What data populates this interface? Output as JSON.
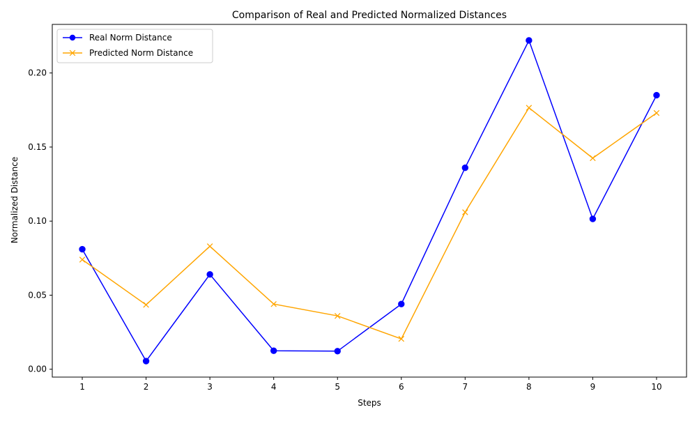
{
  "chart_data": {
    "type": "line",
    "title": "Comparison of Real and Predicted Normalized Distances",
    "xlabel": "Steps",
    "ylabel": "Normalized Distance",
    "x": [
      1,
      2,
      3,
      4,
      5,
      6,
      7,
      8,
      9,
      10
    ],
    "xticks": [
      "1",
      "2",
      "3",
      "4",
      "5",
      "6",
      "7",
      "8",
      "9",
      "10"
    ],
    "yticks": [
      0.0,
      0.05,
      0.1,
      0.15,
      0.2
    ],
    "ytick_labels": [
      "0.00",
      "0.05",
      "0.10",
      "0.15",
      "0.20"
    ],
    "xlim": [
      0.53,
      10.47
    ],
    "ylim": [
      -0.0053,
      0.2328
    ],
    "grid": false,
    "legend_position": "upper-left",
    "series": [
      {
        "name": "Real Norm Distance",
        "color": "#0000ff",
        "marker": "circle",
        "values": [
          0.081,
          0.0055,
          0.064,
          0.0125,
          0.0122,
          0.044,
          0.136,
          0.222,
          0.1015,
          0.185
        ]
      },
      {
        "name": "Predicted Norm Distance",
        "color": "#ffa500",
        "marker": "x",
        "values": [
          0.074,
          0.0435,
          0.083,
          0.044,
          0.036,
          0.0205,
          0.106,
          0.1765,
          0.1425,
          0.173
        ]
      }
    ]
  }
}
